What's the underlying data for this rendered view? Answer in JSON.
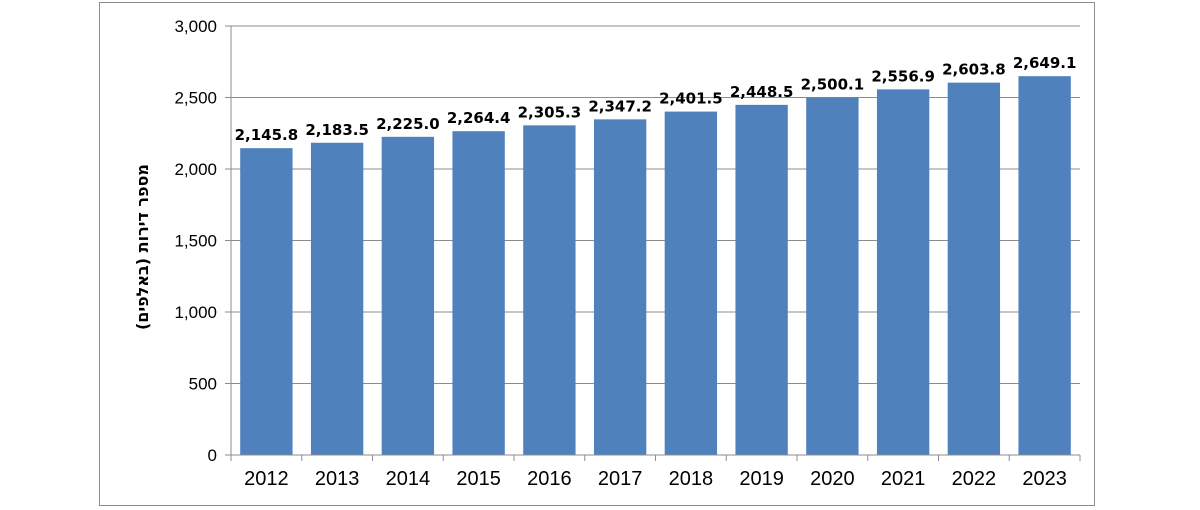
{
  "chart_data": {
    "type": "bar",
    "categories": [
      "2012",
      "2013",
      "2014",
      "2015",
      "2016",
      "2017",
      "2018",
      "2019",
      "2020",
      "2021",
      "2022",
      "2023"
    ],
    "values": [
      2145.8,
      2183.5,
      2225.0,
      2264.4,
      2305.3,
      2347.2,
      2401.5,
      2448.5,
      2500.1,
      2556.9,
      2603.8,
      2649.1
    ],
    "data_labels": [
      "2,145.8",
      "2,183.5",
      "2,225.0",
      "2,264.4",
      "2,305.3",
      "2,347.2",
      "2,401.5",
      "2,448.5",
      "2,500.1",
      "2,556.9",
      "2,603.8",
      "2,649.1"
    ],
    "ylabel": "מספר דירות (באלפים)",
    "xlabel": "",
    "title": "",
    "ylim": [
      0,
      3000
    ],
    "yticks": [
      0,
      500,
      1000,
      1500,
      2000,
      2500,
      3000
    ],
    "ytick_labels": [
      "0",
      "500",
      "1,000",
      "1,500",
      "2,000",
      "2,500",
      "3,000"
    ],
    "grid": true,
    "legend": "none",
    "bar_color": "#4f81bd",
    "grid_color": "#8c8c8c"
  }
}
